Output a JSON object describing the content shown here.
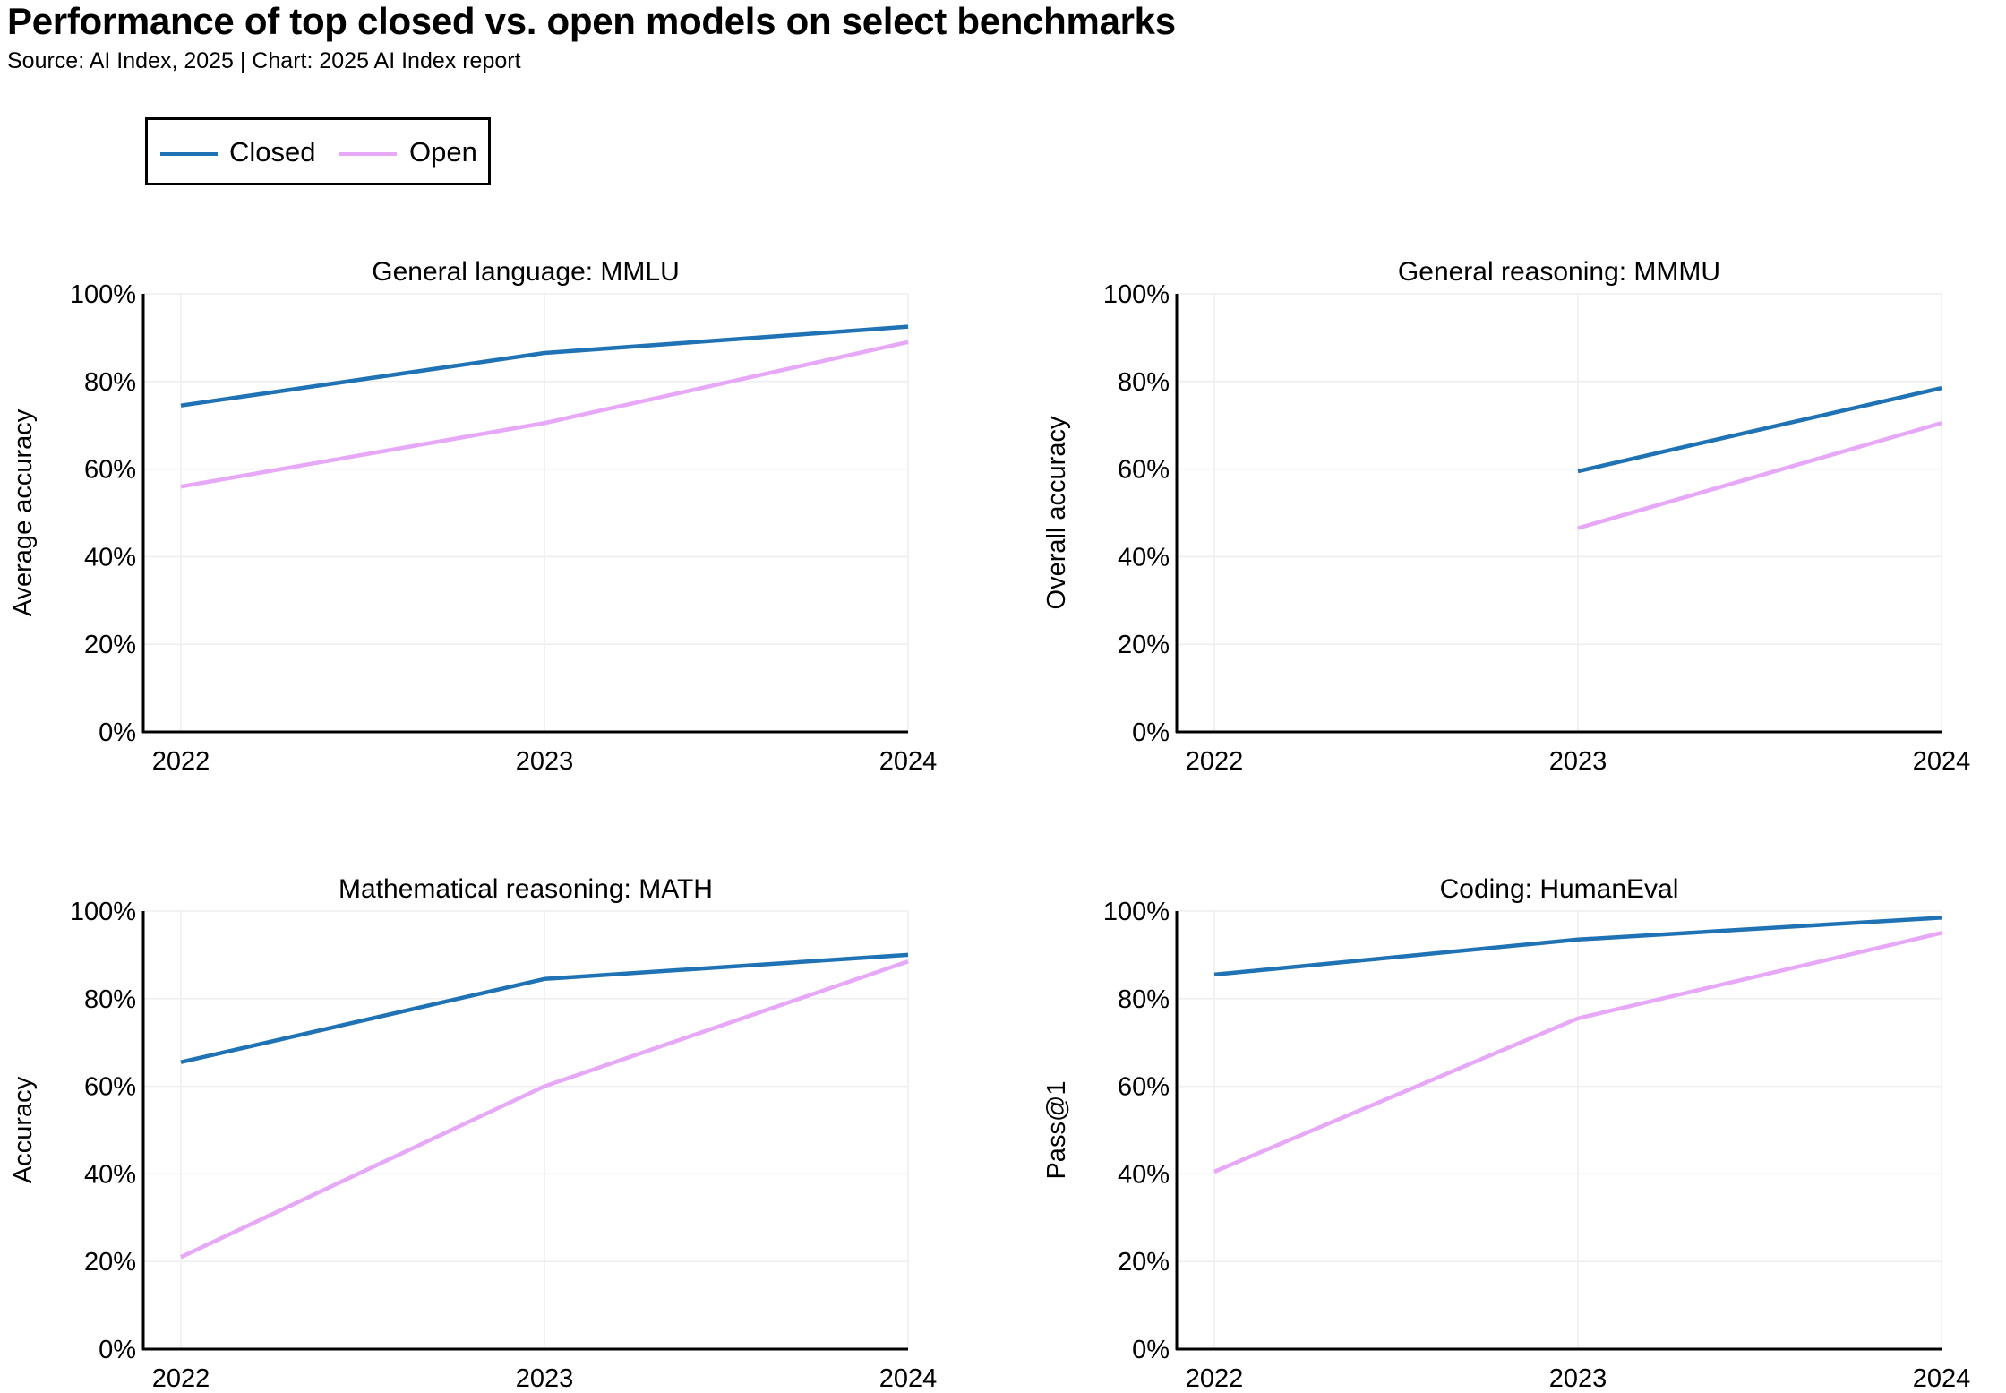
{
  "title": "Performance of top closed vs. open models on select benchmarks",
  "subtitle": "Source: AI Index, 2025 | Chart: 2025 AI Index report",
  "legend": {
    "closed_label": "Closed",
    "open_label": "Open",
    "placement": "top-left"
  },
  "colors": {
    "closed": "#1f72b4",
    "open": "#e6a8f7",
    "grid": "#eeeeee",
    "axis": "#000000"
  },
  "chart_data": [
    {
      "type": "line",
      "title": "General language: MMLU",
      "xlabel": "",
      "ylabel": "Average accuracy",
      "x": [
        "2022",
        "2023",
        "2024"
      ],
      "ylim": [
        0,
        100
      ],
      "yticks": [
        "0%",
        "20%",
        "40%",
        "60%",
        "80%",
        "100%"
      ],
      "grid": true,
      "series": [
        {
          "name": "Closed",
          "values": [
            74.5,
            86.5,
            92.5
          ]
        },
        {
          "name": "Open",
          "values": [
            56,
            70.5,
            89
          ]
        }
      ]
    },
    {
      "type": "line",
      "title": "General reasoning: MMMU",
      "xlabel": "",
      "ylabel": "Overall accuracy",
      "x": [
        "2022",
        "2023",
        "2024"
      ],
      "ylim": [
        0,
        100
      ],
      "yticks": [
        "0%",
        "20%",
        "40%",
        "60%",
        "80%",
        "100%"
      ],
      "grid": true,
      "series": [
        {
          "name": "Closed",
          "values": [
            null,
            59.5,
            78.5
          ]
        },
        {
          "name": "Open",
          "values": [
            null,
            46.5,
            70.5
          ]
        }
      ]
    },
    {
      "type": "line",
      "title": "Mathematical reasoning: MATH",
      "xlabel": "",
      "ylabel": "Accuracy",
      "x": [
        "2022",
        "2023",
        "2024"
      ],
      "ylim": [
        0,
        100
      ],
      "yticks": [
        "0%",
        "20%",
        "40%",
        "60%",
        "80%",
        "100%"
      ],
      "grid": true,
      "series": [
        {
          "name": "Closed",
          "values": [
            65.5,
            84.5,
            90
          ]
        },
        {
          "name": "Open",
          "values": [
            21,
            60,
            88.5
          ]
        }
      ]
    },
    {
      "type": "line",
      "title": "Coding: HumanEval",
      "xlabel": "",
      "ylabel": "Pass@1",
      "x": [
        "2022",
        "2023",
        "2024"
      ],
      "ylim": [
        0,
        100
      ],
      "yticks": [
        "0%",
        "20%",
        "40%",
        "60%",
        "80%",
        "100%"
      ],
      "grid": true,
      "series": [
        {
          "name": "Closed",
          "values": [
            85.5,
            93.5,
            98.5
          ]
        },
        {
          "name": "Open",
          "values": [
            40.5,
            75.5,
            95
          ]
        }
      ]
    }
  ]
}
